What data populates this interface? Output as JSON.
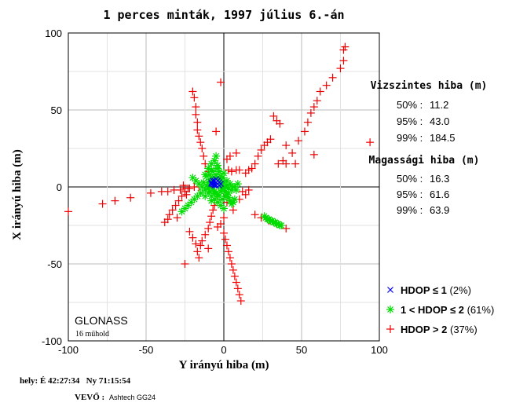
{
  "title": "1 perces minták, 1997 július 6.-án",
  "chart_data": {
    "type": "scatter",
    "title": "1 perces minták, 1997 július 6.-án",
    "xlabel": "Y irányú hiba (m)",
    "ylabel": "X irányú hiba (m)",
    "xlim": [
      -100,
      100
    ],
    "ylim": [
      -100,
      100
    ],
    "xticks": [
      "-100",
      "-50",
      "0",
      "50",
      "100"
    ],
    "yticks": [
      "100",
      "50",
      "0",
      "-50",
      "-100"
    ],
    "grid": true,
    "legend_position": "bottom-right",
    "series": [
      {
        "name": "HDOP ≤ 1",
        "percent": "(2%)",
        "marker": "x",
        "color": "#0000ee",
        "points": [
          [
            -8,
            3
          ],
          [
            -7,
            2
          ],
          [
            -6,
            4
          ],
          [
            -5,
            3
          ],
          [
            -4,
            2
          ],
          [
            -6,
            1
          ],
          [
            -3,
            3
          ],
          [
            -5,
            5
          ],
          [
            -7,
            4
          ],
          [
            -4,
            4
          ],
          [
            -6,
            2
          ],
          [
            -5,
            1
          ],
          [
            -3,
            1
          ],
          [
            -8,
            2
          ],
          [
            -2,
            2
          ]
        ]
      },
      {
        "name": "1 < HDOP ≤ 2",
        "percent": "(61%)",
        "marker": "*",
        "color": "#00dd00",
        "points": [
          [
            -12,
            8
          ],
          [
            -10,
            12
          ],
          [
            -9,
            5
          ],
          [
            -8,
            15
          ],
          [
            -7,
            10
          ],
          [
            -6,
            6
          ],
          [
            -5,
            8
          ],
          [
            -4,
            12
          ],
          [
            -3,
            5
          ],
          [
            -2,
            0
          ],
          [
            -1,
            -2
          ],
          [
            0,
            3
          ],
          [
            1,
            -3
          ],
          [
            2,
            -5
          ],
          [
            3,
            -7
          ],
          [
            4,
            -9
          ],
          [
            5,
            -11
          ],
          [
            6,
            -10
          ],
          [
            7,
            -8
          ],
          [
            2,
            4
          ],
          [
            4,
            2
          ],
          [
            6,
            0
          ],
          [
            8,
            -2
          ],
          [
            -14,
            0
          ],
          [
            -12,
            -2
          ],
          [
            -10,
            -4
          ],
          [
            -8,
            -6
          ],
          [
            -6,
            -8
          ],
          [
            -4,
            -10
          ],
          [
            -2,
            -12
          ],
          [
            0,
            -14
          ],
          [
            -15,
            -4
          ],
          [
            -17,
            -6
          ],
          [
            -19,
            -8
          ],
          [
            -21,
            -10
          ],
          [
            -23,
            -12
          ],
          [
            -25,
            -14
          ],
          [
            -27,
            -16
          ],
          [
            -16,
            2
          ],
          [
            -18,
            4
          ],
          [
            -20,
            6
          ],
          [
            -10,
            -1
          ],
          [
            -9,
            -3
          ],
          [
            -11,
            1
          ],
          [
            -13,
            3
          ],
          [
            -7,
            -2
          ],
          [
            -5,
            -4
          ],
          [
            -3,
            -6
          ],
          [
            -1,
            -8
          ],
          [
            1,
            -6
          ],
          [
            3,
            -4
          ],
          [
            5,
            -2
          ],
          [
            7,
            0
          ],
          [
            9,
            2
          ],
          [
            -2,
            7
          ],
          [
            0,
            9
          ],
          [
            -4,
            14
          ],
          [
            -6,
            17
          ],
          [
            -5,
            20
          ],
          [
            -8,
            11
          ],
          [
            -11,
            7
          ],
          [
            -3,
            10
          ],
          [
            -1,
            6
          ],
          [
            26,
            -19
          ],
          [
            27,
            -20
          ],
          [
            28,
            -21
          ],
          [
            29,
            -21
          ],
          [
            30,
            -22
          ],
          [
            31,
            -22
          ],
          [
            32,
            -23
          ],
          [
            33,
            -23
          ],
          [
            34,
            -24
          ],
          [
            35,
            -24
          ],
          [
            36,
            -25
          ],
          [
            37,
            -25
          ],
          [
            -6,
            -3
          ],
          [
            -4,
            -5
          ],
          [
            -2,
            -3
          ],
          [
            0,
            -1
          ],
          [
            2,
            1
          ],
          [
            -7,
            5
          ],
          [
            -9,
            8
          ],
          [
            -12,
            -6
          ],
          [
            -8,
            -9
          ],
          [
            -1,
            2
          ],
          [
            1,
            0
          ],
          [
            3,
            -1
          ],
          [
            -10,
            3
          ]
        ]
      },
      {
        "name": "HDOP > 2",
        "percent": "(37%)",
        "marker": "+",
        "color": "#ee0000",
        "points": [
          [
            -100,
            -16
          ],
          [
            -78,
            -11
          ],
          [
            -70,
            -9
          ],
          [
            -60,
            -7
          ],
          [
            -47,
            -4
          ],
          [
            -40,
            -3
          ],
          [
            -36,
            -3
          ],
          [
            -32,
            -2
          ],
          [
            -28,
            -2
          ],
          [
            -25,
            -1
          ],
          [
            -22,
            -1
          ],
          [
            -19,
            0
          ],
          [
            -16,
            0
          ],
          [
            -20,
            62
          ],
          [
            -19,
            58
          ],
          [
            -18,
            52
          ],
          [
            -18,
            47
          ],
          [
            -17,
            42
          ],
          [
            -17,
            37
          ],
          [
            -16,
            33
          ],
          [
            -15,
            29
          ],
          [
            -14,
            25
          ],
          [
            -13,
            20
          ],
          [
            -12,
            15
          ],
          [
            -10,
            10
          ],
          [
            -5,
            36
          ],
          [
            -2,
            68
          ],
          [
            3,
            11
          ],
          [
            5,
            10
          ],
          [
            8,
            11
          ],
          [
            10,
            11
          ],
          [
            14,
            9
          ],
          [
            16,
            11
          ],
          [
            18,
            12
          ],
          [
            20,
            15
          ],
          [
            22,
            20
          ],
          [
            24,
            24
          ],
          [
            26,
            27
          ],
          [
            28,
            29
          ],
          [
            30,
            31
          ],
          [
            35,
            15
          ],
          [
            38,
            17
          ],
          [
            40,
            15
          ],
          [
            44,
            22
          ],
          [
            48,
            30
          ],
          [
            52,
            36
          ],
          [
            54,
            42
          ],
          [
            56,
            48
          ],
          [
            58,
            52
          ],
          [
            60,
            56
          ],
          [
            62,
            62
          ],
          [
            66,
            66
          ],
          [
            70,
            71
          ],
          [
            75,
            77
          ],
          [
            77,
            82
          ],
          [
            78,
            91
          ],
          [
            77,
            89
          ],
          [
            94,
            29
          ],
          [
            58,
            21
          ],
          [
            46,
            15
          ],
          [
            40,
            27
          ],
          [
            36,
            41
          ],
          [
            34,
            43
          ],
          [
            32,
            46
          ],
          [
            20,
            -18
          ],
          [
            24,
            -20
          ],
          [
            29,
            -22
          ],
          [
            34,
            -24
          ],
          [
            40,
            -27
          ],
          [
            -38,
            -23
          ],
          [
            -36,
            -21
          ],
          [
            -35,
            -18
          ],
          [
            -33,
            -15
          ],
          [
            -31,
            -12
          ],
          [
            -29,
            -9
          ],
          [
            -27,
            -6
          ],
          [
            -25,
            -3
          ],
          [
            -23,
            -1
          ],
          [
            -22,
            -29
          ],
          [
            -20,
            -33
          ],
          [
            -18,
            -37
          ],
          [
            -17,
            -42
          ],
          [
            -16,
            -46
          ],
          [
            -15,
            -38
          ],
          [
            -14,
            -35
          ],
          [
            -12,
            -31
          ],
          [
            -10,
            -27
          ],
          [
            -9,
            -23
          ],
          [
            -8,
            -19
          ],
          [
            -7,
            -15
          ],
          [
            -6,
            -12
          ],
          [
            -4,
            -8
          ],
          [
            0,
            -30
          ],
          [
            1,
            -34
          ],
          [
            2,
            -38
          ],
          [
            3,
            -42
          ],
          [
            4,
            -46
          ],
          [
            5,
            -50
          ],
          [
            6,
            -54
          ],
          [
            7,
            -58
          ],
          [
            8,
            -62
          ],
          [
            9,
            -66
          ],
          [
            10,
            -70
          ],
          [
            11,
            -74
          ],
          [
            0,
            -20
          ],
          [
            -2,
            -24
          ],
          [
            -4,
            -26
          ],
          [
            -25,
            -50
          ],
          [
            2,
            18
          ],
          [
            4,
            20
          ],
          [
            8,
            22
          ],
          [
            -30,
            -20
          ],
          [
            -10,
            -40
          ],
          [
            2,
            -10
          ],
          [
            6,
            -15
          ],
          [
            12,
            -3
          ],
          [
            14,
            -5
          ],
          [
            16,
            -2
          ],
          [
            10,
            -8
          ],
          [
            -26,
            1
          ],
          [
            -24,
            -5
          ]
        ]
      }
    ]
  },
  "stats": {
    "horizontal": {
      "heading": "Vizszintes hiba (m)",
      "rows": [
        {
          "label": "50% :",
          "value": "11.2"
        },
        {
          "label": "95% :",
          "value": "43.0"
        },
        {
          "label": "99% :",
          "value": "184.5"
        }
      ]
    },
    "vertical": {
      "heading": "Magassági hiba (m)",
      "rows": [
        {
          "label": "50% :",
          "value": "16.3"
        },
        {
          "label": "95% :",
          "value": "61.6"
        },
        {
          "label": "99% :",
          "value": "63.9"
        }
      ]
    }
  },
  "annotation": {
    "system": "GLONASS",
    "satellites": "16 műhold"
  },
  "footer": {
    "location": "hely: É 42:27:34   Ny 71:15:54",
    "receiver_label": "VEVŐ :",
    "receiver": "Ashtech GG24"
  }
}
